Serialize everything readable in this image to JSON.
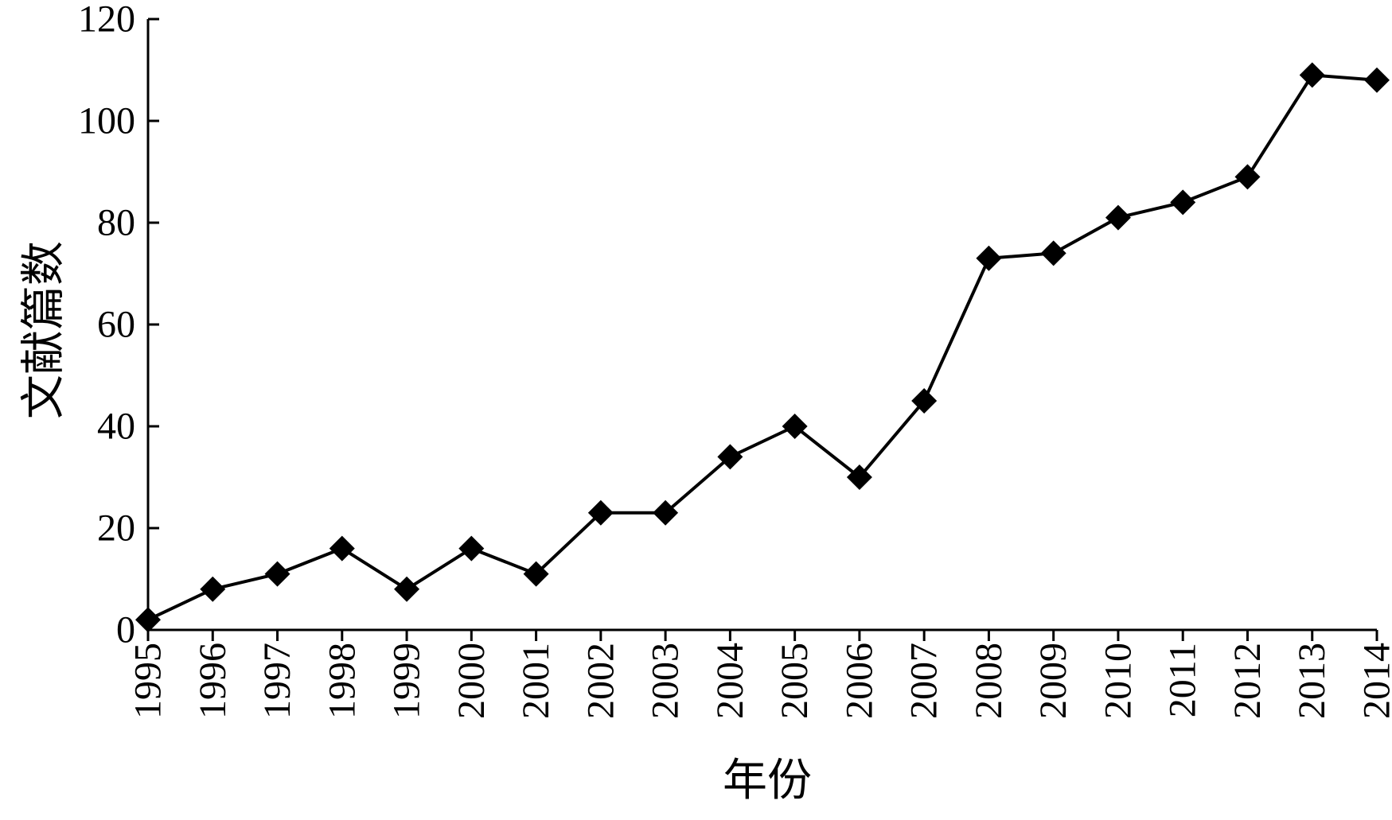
{
  "chart_data": {
    "type": "line",
    "title": "",
    "xlabel": "年份",
    "ylabel": "文献篇数",
    "categories": [
      "1995",
      "1996",
      "1997",
      "1998",
      "1999",
      "2000",
      "2001",
      "2002",
      "2003",
      "2004",
      "2005",
      "2006",
      "2007",
      "2008",
      "2009",
      "2010",
      "2011",
      "2012",
      "2013",
      "2014"
    ],
    "series": [
      {
        "values": [
          2,
          8,
          11,
          16,
          8,
          16,
          11,
          23,
          23,
          34,
          40,
          30,
          45,
          73,
          74,
          81,
          84,
          89,
          109,
          108
        ]
      }
    ],
    "ylim": [
      0,
      120
    ],
    "yticks": [
      0,
      20,
      40,
      60,
      80,
      100,
      120
    ],
    "grid": false,
    "legend": "none",
    "line_color": "#000000",
    "marker": "diamond"
  }
}
